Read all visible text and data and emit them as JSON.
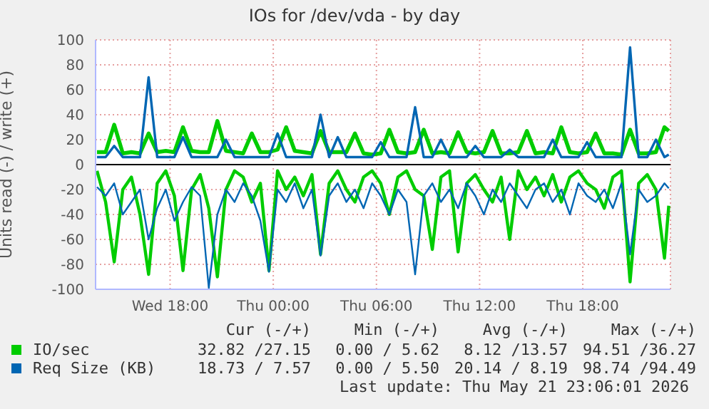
{
  "chart_data": {
    "type": "line",
    "title": "IOs for /dev/vda - by day",
    "ylabel": "Units read (-) / write (+)",
    "x": [
      "2026-05-20T13:45",
      "2026-05-20T14:15",
      "2026-05-20T14:45",
      "2026-05-20T15:15",
      "2026-05-20T15:45",
      "2026-05-20T16:15",
      "2026-05-20T16:45",
      "2026-05-20T17:15",
      "2026-05-20T17:45",
      "2026-05-20T18:15",
      "2026-05-20T18:45",
      "2026-05-20T19:15",
      "2026-05-20T19:45",
      "2026-05-20T20:15",
      "2026-05-20T20:45",
      "2026-05-20T21:15",
      "2026-05-20T21:45",
      "2026-05-20T22:15",
      "2026-05-20T22:45",
      "2026-05-20T23:15",
      "2026-05-20T23:45",
      "2026-05-21T00:15",
      "2026-05-21T00:45",
      "2026-05-21T01:15",
      "2026-05-21T01:45",
      "2026-05-21T02:15",
      "2026-05-21T02:45",
      "2026-05-21T03:15",
      "2026-05-21T03:45",
      "2026-05-21T04:15",
      "2026-05-21T04:45",
      "2026-05-21T05:15",
      "2026-05-21T05:45",
      "2026-05-21T06:15",
      "2026-05-21T06:45",
      "2026-05-21T07:15",
      "2026-05-21T07:45",
      "2026-05-21T08:15",
      "2026-05-21T08:45",
      "2026-05-21T09:15",
      "2026-05-21T09:45",
      "2026-05-21T10:15",
      "2026-05-21T10:45",
      "2026-05-21T11:15",
      "2026-05-21T11:45",
      "2026-05-21T12:15",
      "2026-05-21T12:45",
      "2026-05-21T13:15",
      "2026-05-21T13:45",
      "2026-05-21T14:15",
      "2026-05-21T14:45",
      "2026-05-21T15:15",
      "2026-05-21T15:45",
      "2026-05-21T16:15",
      "2026-05-21T16:45",
      "2026-05-21T17:15",
      "2026-05-21T17:45",
      "2026-05-21T18:15",
      "2026-05-21T18:45",
      "2026-05-21T19:15",
      "2026-05-21T19:45",
      "2026-05-21T20:15",
      "2026-05-21T20:45",
      "2026-05-21T21:15",
      "2026-05-21T21:45",
      "2026-05-21T22:15",
      "2026-05-21T22:45",
      "2026-05-21T23:00"
    ],
    "series": [
      {
        "name": "IO/sec",
        "color": "#00cc00",
        "values": [
          10,
          10,
          32,
          9,
          10,
          9,
          25,
          10,
          11,
          10,
          30,
          11,
          10,
          10,
          35,
          11,
          10,
          9,
          25,
          10,
          10,
          12,
          30,
          11,
          10,
          9,
          27,
          10,
          10,
          10,
          25,
          9,
          8,
          9,
          28,
          10,
          9,
          10,
          28,
          9,
          10,
          9,
          26,
          10,
          9,
          10,
          27,
          9,
          9,
          10,
          27,
          9,
          10,
          9,
          30,
          10,
          9,
          10,
          25,
          9,
          9,
          8,
          28,
          9,
          9,
          10,
          30,
          27
        ]
      },
      {
        "color": "#00cc00",
        "values": [
          -5,
          -30,
          -78,
          -20,
          -10,
          -40,
          -88,
          -15,
          -5,
          -25,
          -85,
          -20,
          -8,
          -35,
          -90,
          -20,
          -5,
          -10,
          -30,
          -15,
          -85,
          -5,
          -20,
          -10,
          -25,
          -8,
          -72,
          -15,
          -5,
          -20,
          -30,
          -10,
          -5,
          -15,
          -40,
          -10,
          -5,
          -20,
          -25,
          -68,
          -10,
          -5,
          -70,
          -15,
          -8,
          -20,
          -30,
          -10,
          -60,
          -5,
          -20,
          -10,
          -25,
          -8,
          -30,
          -10,
          -5,
          -15,
          -20,
          -35,
          -10,
          -5,
          -94,
          -15,
          -8,
          -20,
          -75,
          -33
        ]
      },
      {
        "name": "Req Size (KB)",
        "color": "#0066b3",
        "values": [
          6,
          6,
          15,
          6,
          6,
          6,
          70,
          6,
          6,
          6,
          22,
          6,
          6,
          6,
          6,
          20,
          6,
          6,
          6,
          6,
          6,
          25,
          6,
          6,
          6,
          6,
          40,
          6,
          22,
          6,
          6,
          6,
          6,
          18,
          6,
          6,
          6,
          46,
          6,
          6,
          20,
          6,
          6,
          6,
          15,
          6,
          6,
          6,
          12,
          6,
          6,
          6,
          6,
          20,
          6,
          6,
          6,
          18,
          6,
          6,
          6,
          6,
          94,
          6,
          6,
          20,
          6,
          8
        ]
      },
      {
        "color": "#0066b3",
        "values": [
          -18,
          -25,
          -15,
          -40,
          -30,
          -20,
          -60,
          -35,
          -20,
          -45,
          -30,
          -18,
          -25,
          -99,
          -40,
          -20,
          -30,
          -15,
          -25,
          -45,
          -86,
          -20,
          -30,
          -15,
          -35,
          -20,
          -73,
          -25,
          -15,
          -30,
          -20,
          -35,
          -15,
          -25,
          -40,
          -20,
          -30,
          -88,
          -25,
          -15,
          -30,
          -20,
          -35,
          -15,
          -25,
          -40,
          -20,
          -30,
          -15,
          -25,
          -35,
          -20,
          -15,
          -30,
          -20,
          -40,
          -15,
          -25,
          -30,
          -20,
          -35,
          -15,
          -72,
          -20,
          -30,
          -25,
          -15,
          -19
        ]
      }
    ],
    "xlim": [
      "2026-05-20T13:40",
      "2026-05-21T23:06"
    ],
    "xticks": [
      {
        "value": "2026-05-20T18:00",
        "label": "Wed 18:00"
      },
      {
        "value": "2026-05-21T00:00",
        "label": "Thu 00:00"
      },
      {
        "value": "2026-05-21T06:00",
        "label": "Thu 06:00"
      },
      {
        "value": "2026-05-21T12:00",
        "label": "Thu 12:00"
      },
      {
        "value": "2026-05-21T18:00",
        "label": "Thu 18:00"
      }
    ],
    "ylim": [
      -100,
      100
    ],
    "yticks": [
      -100,
      -80,
      -60,
      -40,
      -20,
      0,
      20,
      40,
      60,
      80,
      100
    ],
    "ref_lines": [
      {
        "axis": "y",
        "value": 0,
        "color": "#000000"
      }
    ],
    "grid": true,
    "legend": "bottom",
    "marker": "none",
    "line_style": "solid",
    "annotations": [
      "Cur (-/+)",
      "Min (-/+)",
      "Avg (-/+)",
      "Max (-/+)",
      "32.82 /27.15",
      "0.00 / 5.62",
      "8.12 /13.57",
      "94.51 /36.27",
      "18.73 / 7.57",
      "0.00 / 5.50",
      "20.14 / 8.19",
      "98.74 /94.49",
      "Last update: Thu May 21 23:06:01 2026"
    ]
  }
}
